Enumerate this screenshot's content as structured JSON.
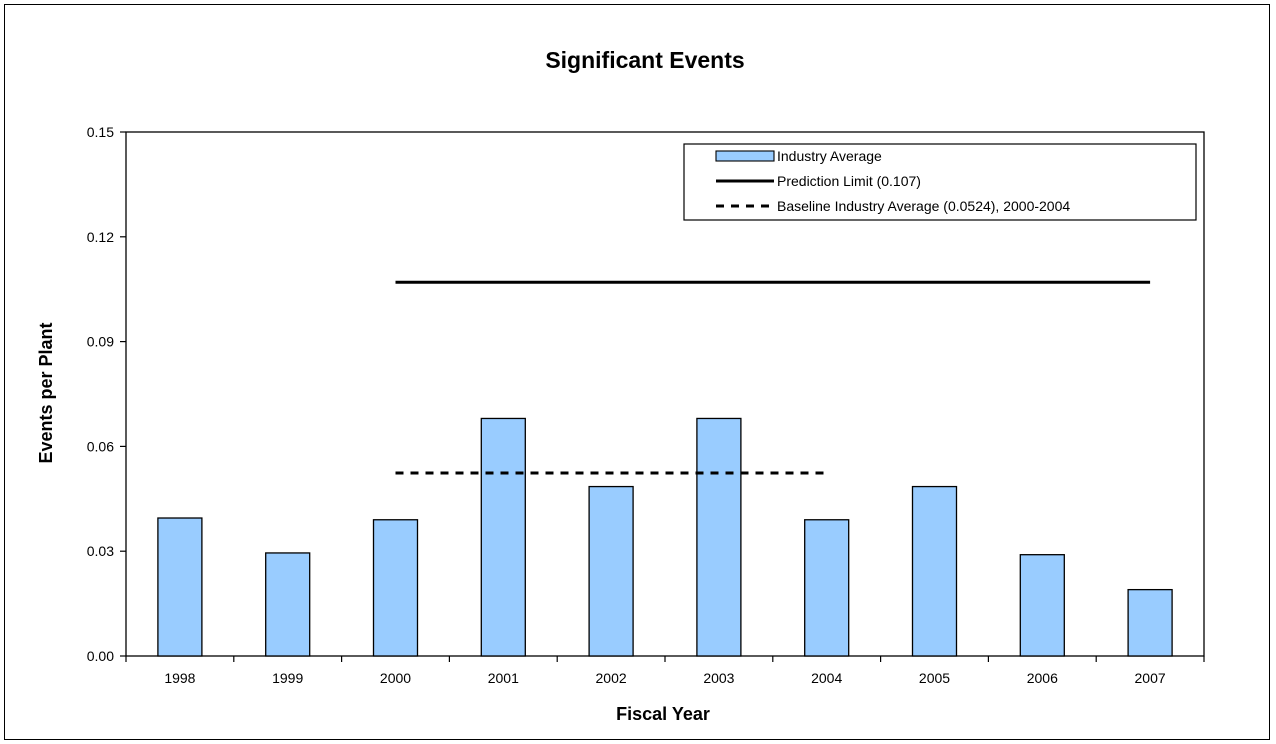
{
  "chart_data": {
    "type": "bar",
    "title": "Significant Events",
    "xlabel": "Fiscal Year",
    "ylabel": "Events per Plant",
    "categories": [
      "1998",
      "1999",
      "2000",
      "2001",
      "2002",
      "2003",
      "2004",
      "2005",
      "2006",
      "2007"
    ],
    "series": [
      {
        "name": "Industry Average",
        "type": "bar",
        "color": "#99ccff",
        "values": [
          0.0395,
          0.0295,
          0.039,
          0.068,
          0.0485,
          0.068,
          0.039,
          0.0485,
          0.029,
          0.019
        ]
      }
    ],
    "reference_lines": [
      {
        "name": "Prediction Limit (0.107)",
        "style": "solid",
        "color": "#000000",
        "value": 0.107,
        "from": "2000",
        "to": "2007"
      },
      {
        "name": "Baseline Industry Average (0.0524), 2000-2004",
        "style": "dashed",
        "color": "#000000",
        "value": 0.0524,
        "from": "2000",
        "to": "2004"
      }
    ],
    "y_ticks": [
      "0.00",
      "0.03",
      "0.06",
      "0.09",
      "0.12",
      "0.15"
    ],
    "ylim": [
      0,
      0.15
    ],
    "grid": false,
    "legend_position": "top-right"
  }
}
